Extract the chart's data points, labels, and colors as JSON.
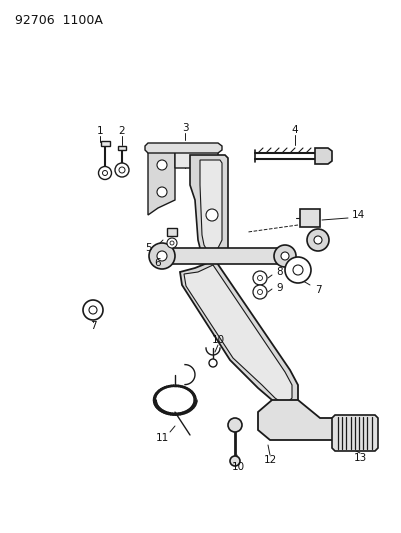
{
  "title": "92706  1100A",
  "bg_color": "#ffffff",
  "line_color": "#1a1a1a",
  "label_color": "#111111",
  "fig_width": 4.01,
  "fig_height": 5.33,
  "dpi": 100
}
